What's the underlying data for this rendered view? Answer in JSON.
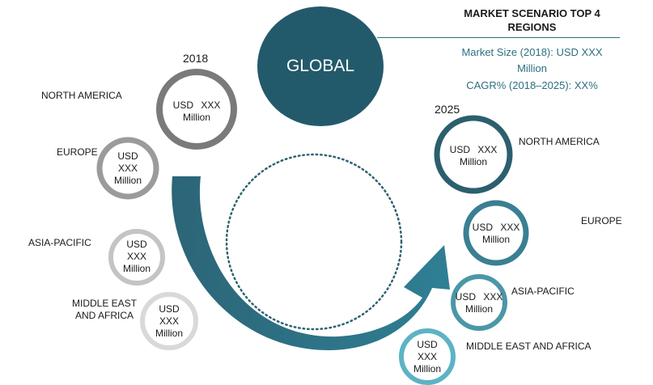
{
  "header": {
    "title_line1": "MARKET SCENARIO TOP 4",
    "title_line2": "REGIONS",
    "market_size_line1": "Market Size (2018): USD XXX",
    "market_size_line2": "Million",
    "cagr": "CAGR% (2018–2025): XX%"
  },
  "center": {
    "label": "GLOBAL"
  },
  "colors": {
    "global": "#235a6b",
    "grey_dark": "#7a7a7a",
    "grey_mid": "#9b9b9b",
    "grey_light": "#c4c4c4",
    "grey_lighter": "#d9d9d9",
    "teal_dark": "#2c5f6e",
    "teal_mid": "#3a7f92",
    "teal_light": "#4a97a8",
    "teal_lighter": "#5cb3c4",
    "dotted_ring": "#2c6272"
  },
  "year_2018": {
    "label": "2018",
    "regions": [
      {
        "name": "NORTH AMERICA",
        "value_line1": "USD XXX",
        "value_line2": "Million"
      },
      {
        "name": "EUROPE",
        "value_line1": "USD",
        "value_line2": "XXX",
        "value_line3": "Million"
      },
      {
        "name": "ASIA-PACIFIC",
        "value_line1": "USD",
        "value_line2": "XXX",
        "value_line3": "Million"
      },
      {
        "name_line1": "MIDDLE EAST",
        "name_line2": "AND AFRICA",
        "value_line1": "USD",
        "value_line2": "XXX",
        "value_line3": "Million"
      }
    ]
  },
  "year_2025": {
    "label": "2025",
    "regions": [
      {
        "name": "NORTH AMERICA",
        "value_line1": "USD XXX",
        "value_line2": "Million"
      },
      {
        "name": "EUROPE",
        "value_line1": "USD XXX",
        "value_line2": "Million"
      },
      {
        "name": "ASIA-PACIFIC",
        "value_line1": "USD XXX",
        "value_line2": "Million"
      },
      {
        "name": "MIDDLE EAST AND AFRICA",
        "value_line1": "USD",
        "value_line2": "XXX",
        "value_line3": "Million"
      }
    ]
  }
}
